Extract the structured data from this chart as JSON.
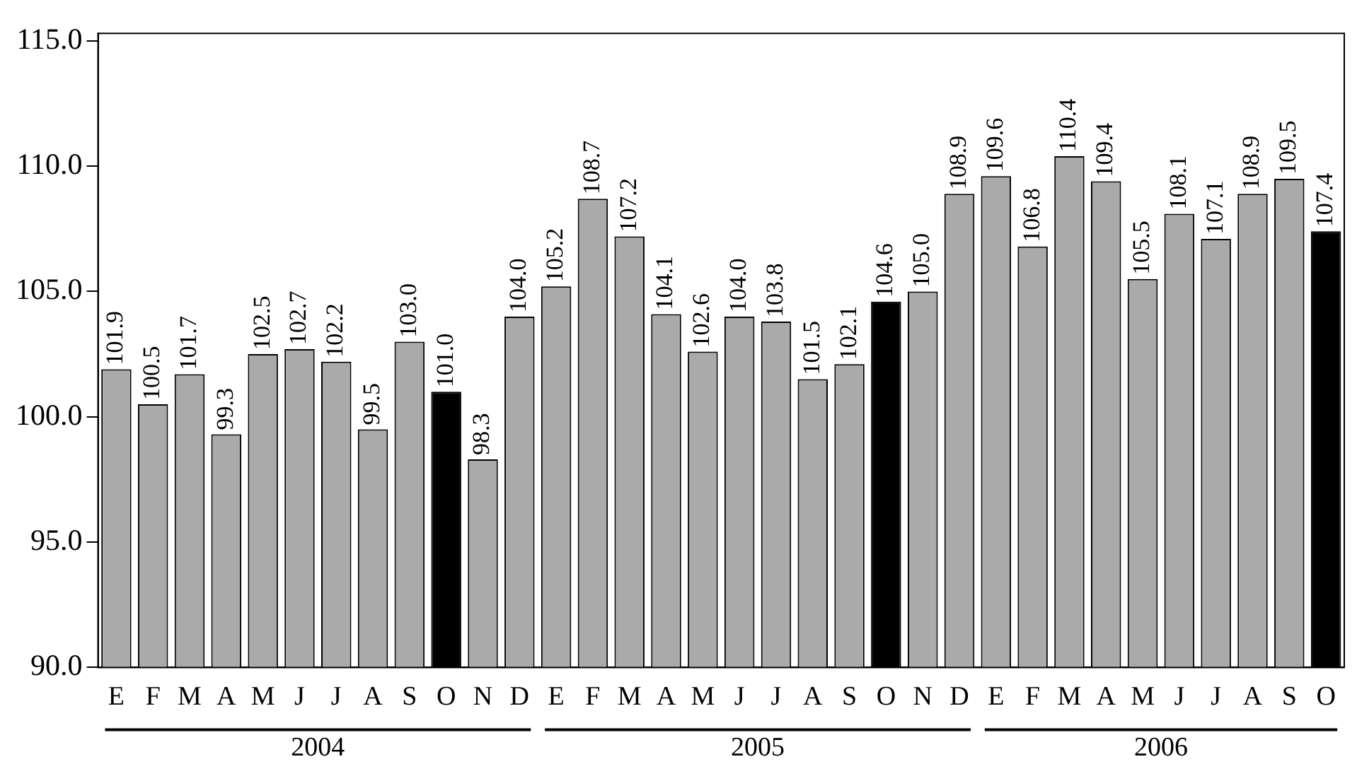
{
  "chart_data": {
    "type": "bar",
    "categories": [
      "E",
      "F",
      "M",
      "A",
      "M",
      "J",
      "J",
      "A",
      "S",
      "O",
      "N",
      "D",
      "E",
      "F",
      "M",
      "A",
      "M",
      "J",
      "J",
      "A",
      "S",
      "O",
      "N",
      "D",
      "E",
      "F",
      "M",
      "A",
      "M",
      "J",
      "J",
      "A",
      "S",
      "O"
    ],
    "values": [
      101.9,
      100.5,
      101.7,
      99.3,
      102.5,
      102.7,
      102.2,
      99.5,
      103.0,
      101.0,
      98.3,
      104.0,
      105.2,
      108.7,
      107.2,
      104.1,
      102.6,
      104.0,
      103.8,
      101.5,
      102.1,
      104.6,
      105.0,
      108.9,
      109.6,
      106.8,
      110.4,
      109.4,
      105.5,
      108.1,
      107.1,
      108.9,
      109.5,
      107.4
    ],
    "value_labels": [
      "101.9",
      "100.5",
      "101.7",
      "99.3",
      "102.5",
      "102.7",
      "102.2",
      "99.5",
      "103.0",
      "101.0",
      "98.3",
      "104.0",
      "105.2",
      "108.7",
      "107.2",
      "104.1",
      "102.6",
      "104.0",
      "103.8",
      "101.5",
      "102.1",
      "104.6",
      "105.0",
      "108.9",
      "109.6",
      "106.8",
      "110.4",
      "109.4",
      "105.5",
      "108.1",
      "107.1",
      "108.9",
      "109.5",
      "107.4"
    ],
    "colors": [
      "#aaaaaa",
      "#aaaaaa",
      "#aaaaaa",
      "#aaaaaa",
      "#aaaaaa",
      "#aaaaaa",
      "#aaaaaa",
      "#aaaaaa",
      "#aaaaaa",
      "#000000",
      "#aaaaaa",
      "#aaaaaa",
      "#aaaaaa",
      "#aaaaaa",
      "#aaaaaa",
      "#aaaaaa",
      "#aaaaaa",
      "#aaaaaa",
      "#aaaaaa",
      "#aaaaaa",
      "#aaaaaa",
      "#000000",
      "#aaaaaa",
      "#aaaaaa",
      "#aaaaaa",
      "#aaaaaa",
      "#aaaaaa",
      "#aaaaaa",
      "#aaaaaa",
      "#aaaaaa",
      "#aaaaaa",
      "#aaaaaa",
      "#aaaaaa",
      "#000000"
    ],
    "ylim": [
      90,
      115.3
    ],
    "yticks": [
      {
        "value": 90,
        "label": "90.0"
      },
      {
        "value": 95,
        "label": "95.0"
      },
      {
        "value": 100,
        "label": "100.0"
      },
      {
        "value": 105,
        "label": "105.0"
      },
      {
        "value": 110,
        "label": "110.0"
      },
      {
        "value": 115,
        "label": "115.0"
      }
    ],
    "annotations": [
      "2004",
      "2005",
      "2006"
    ],
    "grid": false,
    "legend": false
  }
}
